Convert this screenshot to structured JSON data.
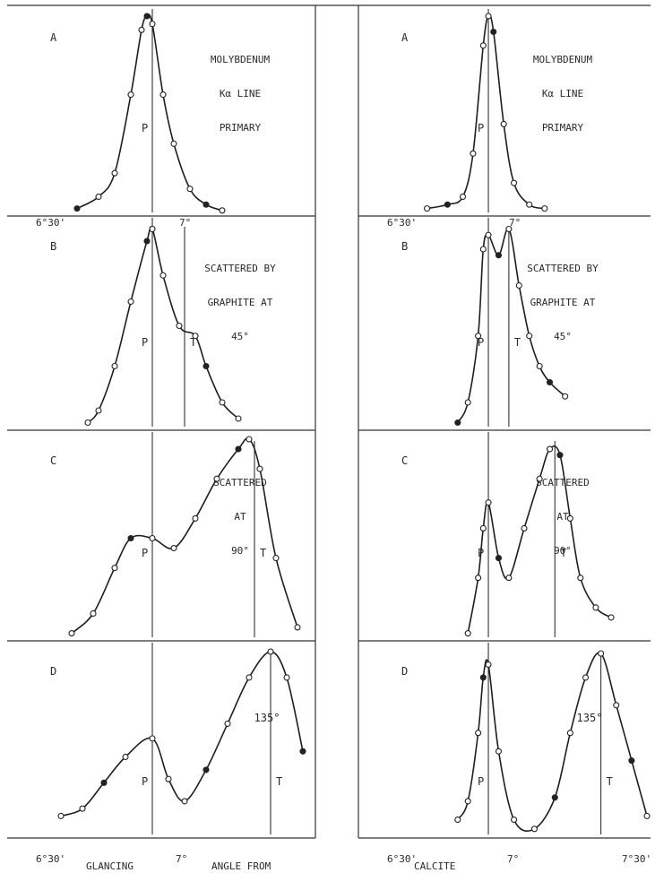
{
  "figure": {
    "bottom_labels": [
      "GLANCING",
      "ANGLE FROM",
      "CALCITE"
    ],
    "tick_labels_left": {
      "start": "6°30'",
      "mid": "7°"
    },
    "tick_labels_right": {
      "start": "6°30'",
      "mid": "7°",
      "end": "7°30'"
    }
  },
  "chart_data": [
    {
      "type": "line",
      "column": "left",
      "panel": "A",
      "lines": [
        "MOLYBDENUM",
        "Kα LINE",
        "PRIMARY"
      ],
      "peak_labels": [
        "P"
      ],
      "x_unit": "arcmin from 6°30'",
      "xlim": [
        0,
        48
      ],
      "marker_x": {
        "P": 18
      },
      "points": [
        [
          4,
          0.02
        ],
        [
          8,
          0.08
        ],
        [
          11,
          0.2
        ],
        [
          14,
          0.6
        ],
        [
          16,
          0.93
        ],
        [
          17,
          1.0
        ],
        [
          18,
          0.96
        ],
        [
          20,
          0.6
        ],
        [
          22,
          0.35
        ],
        [
          25,
          0.12
        ],
        [
          28,
          0.04
        ],
        [
          31,
          0.01
        ]
      ]
    },
    {
      "type": "line",
      "column": "left",
      "panel": "B",
      "lines": [
        "SCATTERED BY",
        "GRAPHITE AT",
        "45°"
      ],
      "peak_labels": [
        "P",
        "T"
      ],
      "x_unit": "arcmin from 6°30'",
      "xlim": [
        0,
        48
      ],
      "marker_x": {
        "P": 18,
        "T": 24
      },
      "points": [
        [
          6,
          0.02
        ],
        [
          8,
          0.08
        ],
        [
          11,
          0.3
        ],
        [
          14,
          0.62
        ],
        [
          17,
          0.92
        ],
        [
          18,
          0.98
        ],
        [
          20,
          0.75
        ],
        [
          23,
          0.5
        ],
        [
          26,
          0.45
        ],
        [
          28,
          0.3
        ],
        [
          31,
          0.12
        ],
        [
          34,
          0.04
        ]
      ]
    },
    {
      "type": "line",
      "column": "left",
      "panel": "C",
      "lines": [
        "SCATTERED",
        "AT",
        "90°"
      ],
      "peak_labels": [
        "P",
        "T"
      ],
      "x_unit": "arcmin from 6°30'",
      "xlim": [
        0,
        48
      ],
      "marker_x": {
        "P": 18,
        "T": 37
      },
      "points": [
        [
          3,
          0.02
        ],
        [
          7,
          0.12
        ],
        [
          11,
          0.35
        ],
        [
          14,
          0.5
        ],
        [
          18,
          0.5
        ],
        [
          22,
          0.45
        ],
        [
          26,
          0.6
        ],
        [
          30,
          0.8
        ],
        [
          34,
          0.95
        ],
        [
          36,
          1.0
        ],
        [
          38,
          0.85
        ],
        [
          41,
          0.4
        ],
        [
          45,
          0.05
        ]
      ]
    },
    {
      "type": "line",
      "column": "left",
      "panel": "D",
      "lines": [
        "135°"
      ],
      "peak_labels": [
        "P",
        "T"
      ],
      "x_unit": "arcmin from 6°30'",
      "xlim": [
        0,
        48
      ],
      "marker_x": {
        "P": 18,
        "T": 40
      },
      "points": [
        [
          1,
          0.1
        ],
        [
          5,
          0.14
        ],
        [
          9,
          0.28
        ],
        [
          13,
          0.42
        ],
        [
          18,
          0.52
        ],
        [
          21,
          0.3
        ],
        [
          24,
          0.18
        ],
        [
          28,
          0.35
        ],
        [
          32,
          0.6
        ],
        [
          36,
          0.85
        ],
        [
          40,
          0.99
        ],
        [
          43,
          0.85
        ],
        [
          46,
          0.45
        ]
      ]
    },
    {
      "type": "line",
      "column": "right",
      "panel": "A",
      "lines": [
        "MOLYBDENUM",
        "Kα LINE",
        "PRIMARY"
      ],
      "peak_labels": [
        "P"
      ],
      "x_unit": "arcmin from 6°30'",
      "xlim": [
        0,
        48
      ],
      "marker_x": {
        "P": 17
      },
      "points": [
        [
          5,
          0.02
        ],
        [
          9,
          0.04
        ],
        [
          12,
          0.08
        ],
        [
          14,
          0.3
        ],
        [
          16,
          0.85
        ],
        [
          17,
          1.0
        ],
        [
          18,
          0.92
        ],
        [
          20,
          0.45
        ],
        [
          22,
          0.15
        ],
        [
          25,
          0.04
        ],
        [
          28,
          0.02
        ]
      ]
    },
    {
      "type": "line",
      "column": "right",
      "panel": "B",
      "lines": [
        "SCATTERED BY",
        "GRAPHITE AT",
        "45°"
      ],
      "peak_labels": [
        "P",
        "T"
      ],
      "x_unit": "arcmin from 6°30'",
      "xlim": [
        0,
        48
      ],
      "marker_x": {
        "P": 17,
        "T": 21
      },
      "points": [
        [
          11,
          0.02
        ],
        [
          13,
          0.12
        ],
        [
          15,
          0.45
        ],
        [
          16,
          0.88
        ],
        [
          17,
          0.95
        ],
        [
          19,
          0.85
        ],
        [
          21,
          0.98
        ],
        [
          23,
          0.7
        ],
        [
          25,
          0.45
        ],
        [
          27,
          0.3
        ],
        [
          29,
          0.22
        ],
        [
          32,
          0.15
        ]
      ]
    },
    {
      "type": "line",
      "column": "right",
      "panel": "C",
      "lines": [
        "SCATTERED",
        "AT",
        "90°"
      ],
      "peak_labels": [
        "P",
        "T"
      ],
      "x_unit": "arcmin from 6°30'",
      "xlim": [
        0,
        48
      ],
      "marker_x": {
        "P": 17,
        "T": 30
      },
      "points": [
        [
          13,
          0.02
        ],
        [
          15,
          0.3
        ],
        [
          16,
          0.55
        ],
        [
          17,
          0.68
        ],
        [
          19,
          0.4
        ],
        [
          21,
          0.3
        ],
        [
          24,
          0.55
        ],
        [
          27,
          0.8
        ],
        [
          29,
          0.95
        ],
        [
          31,
          0.92
        ],
        [
          33,
          0.6
        ],
        [
          35,
          0.3
        ],
        [
          38,
          0.15
        ],
        [
          41,
          0.1
        ]
      ]
    },
    {
      "type": "line",
      "column": "right",
      "panel": "D",
      "lines": [
        "135°"
      ],
      "peak_labels": [
        "P",
        "T"
      ],
      "x_unit": "arcmin from 6°30'",
      "xlim": [
        0,
        48
      ],
      "marker_x": {
        "P": 17,
        "T": 39
      },
      "points": [
        [
          11,
          0.08
        ],
        [
          13,
          0.18
        ],
        [
          15,
          0.55
        ],
        [
          16,
          0.85
        ],
        [
          17,
          0.92
        ],
        [
          19,
          0.45
        ],
        [
          22,
          0.08
        ],
        [
          26,
          0.03
        ],
        [
          30,
          0.2
        ],
        [
          33,
          0.55
        ],
        [
          36,
          0.85
        ],
        [
          39,
          0.98
        ],
        [
          42,
          0.7
        ],
        [
          45,
          0.4
        ],
        [
          48,
          0.1
        ]
      ]
    }
  ]
}
